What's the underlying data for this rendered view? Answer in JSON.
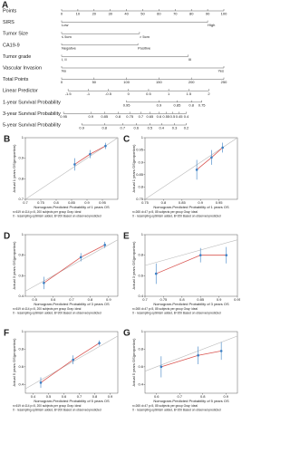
{
  "chart_data": [
    {
      "type": "nomogram",
      "panel": "A",
      "xlim": [
        0,
        100
      ],
      "x2lim": [
        0,
        250
      ],
      "rows": [
        {
          "label": "Points",
          "axis": "x",
          "ticks": [
            0,
            10,
            20,
            30,
            40,
            50,
            60,
            70,
            80,
            90,
            100
          ]
        },
        {
          "label": "SIRS",
          "axis": "x",
          "ticks": [
            {
              "value": 0,
              "label": "Low"
            },
            {
              "value": 90,
              "label": "High"
            }
          ]
        },
        {
          "label": "Tumor Size",
          "axis": "x",
          "ticks": [
            {
              "value": 0,
              "label": "≤ 5cm"
            },
            {
              "value": 48,
              "label": "> 5cm"
            }
          ]
        },
        {
          "label": "CA19-9",
          "axis": "x",
          "ticks": [
            {
              "value": 0,
              "label": "Negative"
            },
            {
              "value": 47,
              "label": "Positive"
            }
          ]
        },
        {
          "label": "Tumor grade",
          "axis": "x",
          "ticks": [
            {
              "value": 0,
              "label": "I, II"
            },
            {
              "value": 78,
              "label": "III"
            }
          ]
        },
        {
          "label": "Vascular Invasion",
          "axis": "x",
          "ticks": [
            {
              "value": 0,
              "label": "No"
            },
            {
              "value": 100,
              "label": "Yes"
            }
          ]
        },
        {
          "label": "Total Points",
          "axis": "x2",
          "ticks": [
            0,
            50,
            100,
            150,
            200,
            250
          ]
        },
        {
          "label": "Linear Predictor",
          "axis": "x2",
          "ticks": [
            -1.5,
            -1,
            -0.5,
            0,
            0.5,
            1,
            1.5,
            2
          ],
          "at": [
            10,
            41,
            72,
            103,
            134,
            165,
            196,
            227
          ]
        },
        {
          "label": "1-year Survival Probability",
          "axis": "x2",
          "ticks": [
            0.95,
            0.9,
            0.85,
            0.8,
            0.75
          ],
          "at": [
            100,
            150,
            178,
            200,
            216
          ]
        },
        {
          "label": "3-year Survival Probability",
          "axis": "x2",
          "ticks": [
            0.95,
            0.9,
            0.85,
            0.8,
            0.75,
            0.7,
            0.65,
            0.6,
            0.55,
            0.5,
            0.45,
            0.4
          ],
          "at": [
            3,
            45,
            66,
            87,
            105,
            122,
            136,
            150,
            161,
            171,
            181,
            192
          ]
        },
        {
          "label": "5-year Survival Probability",
          "axis": "x2",
          "ticks": [
            0.9,
            0.8,
            0.7,
            0.6,
            0.5,
            0.4,
            0.3,
            0.2
          ],
          "at": [
            31,
            66,
            94,
            115,
            136,
            154,
            174,
            192
          ]
        }
      ]
    },
    {
      "type": "calibration",
      "panel": "B",
      "xlabel": "Nomogram-Predicted Probability of 1 years OS",
      "ylabel": "Actual 1 years OS(proportion)",
      "notes": [
        "n=619 d=114 p=5, 200 subjects per group  Gray: ideal",
        "X - resampling optimism added, B=200  Based on observed-predicted"
      ],
      "xlim": [
        0.7,
        1.0
      ],
      "xticks": [
        0.7,
        0.75,
        0.8,
        0.85,
        0.9,
        0.95
      ],
      "ylim": [
        0.7,
        1.0
      ],
      "yticks": [
        0.7,
        0.8,
        0.9,
        1.0
      ],
      "color": "#d9534f",
      "point_color": "#3a7fc4",
      "x": [
        0.86,
        0.91,
        0.96
      ],
      "values": [
        0.87,
        0.92,
        0.96
      ],
      "errors": [
        0.03,
        0.02,
        0.015
      ]
    },
    {
      "type": "calibration",
      "panel": "C",
      "xlabel": "Nomogram-Predicted Probability of 1 years OS",
      "ylabel": "Actual 1 years OS(proportion)",
      "notes": [
        "n=265 d=47 p=5, 85 subjects per group  Gray: ideal",
        "X - resampling optimism added, B=200  Based on observed-predicted"
      ],
      "xlim": [
        0.75,
        1.0
      ],
      "xticks": [
        0.75,
        0.8,
        0.85,
        0.9,
        0.95
      ],
      "ylim": [
        0.75,
        1.0
      ],
      "yticks": [
        0.75,
        0.8,
        0.85,
        0.9,
        0.95,
        1.0
      ],
      "color": "#d9534f",
      "point_color": "#3a7fc4",
      "x": [
        0.89,
        0.93,
        0.96
      ],
      "values": [
        0.87,
        0.92,
        0.96
      ],
      "errors": [
        0.04,
        0.03,
        0.02
      ]
    },
    {
      "type": "calibration",
      "panel": "D",
      "xlabel": "Nomogram-Predicted Probability of 3 years OS",
      "ylabel": "Actual 3 years OS(proportion)",
      "notes": [
        "n=619 d=114 p=5, 200 subjects per group  Gray: ideal",
        "X - resampling optimism added, B=200  Based on observed-predicted"
      ],
      "xlim": [
        0.45,
        0.95
      ],
      "xticks": [
        0.5,
        0.6,
        0.7,
        0.8,
        0.9
      ],
      "ylim": [
        0.4,
        1.0
      ],
      "yticks": [
        0.4,
        0.6,
        0.8,
        1.0
      ],
      "color": "#d9534f",
      "point_color": "#3a7fc4",
      "x": [
        0.55,
        0.75,
        0.88
      ],
      "values": [
        0.53,
        0.78,
        0.9
      ],
      "errors": [
        0.06,
        0.04,
        0.03
      ]
    },
    {
      "type": "calibration",
      "panel": "E",
      "xlabel": "Nomogram-Predicted Probability of 3 years OS",
      "ylabel": "Actual 3 years OS(proportion)",
      "notes": [
        "n=265 d=47 p=5, 85 subjects per group  Gray: ideal",
        "X - resampling optimism added, B=200  Based on observed-predicted"
      ],
      "xlim": [
        0.7,
        0.95
      ],
      "xticks": [
        0.7,
        0.75,
        0.8,
        0.85,
        0.9,
        0.95
      ],
      "ylim": [
        0.4,
        1.0
      ],
      "yticks": [
        0.4,
        0.6,
        0.8,
        1.0
      ],
      "color": "#d9534f",
      "point_color": "#3a7fc4",
      "x": [
        0.73,
        0.85,
        0.92
      ],
      "values": [
        0.62,
        0.8,
        0.8
      ],
      "errors": [
        0.1,
        0.07,
        0.08
      ]
    },
    {
      "type": "calibration",
      "panel": "F",
      "xlabel": "Nomogram-Predicted Probability of 5 years OS",
      "ylabel": "Actual 5 years OS(proportion)",
      "notes": [
        "n=619 d=114 p=5, 200 subjects per group  Gray: ideal",
        "X - resampling optimism added, B=200  Based on observed-predicted"
      ],
      "xlim": [
        0.35,
        0.95
      ],
      "xticks": [
        0.4,
        0.5,
        0.6,
        0.7,
        0.8,
        0.9
      ],
      "ylim": [
        0.3,
        1.0
      ],
      "yticks": [
        0.4,
        0.6,
        0.8,
        1.0
      ],
      "color": "#d9534f",
      "point_color": "#3a7fc4",
      "x": [
        0.45,
        0.66,
        0.83
      ],
      "values": [
        0.42,
        0.68,
        0.87
      ],
      "errors": [
        0.06,
        0.05,
        0.03
      ]
    },
    {
      "type": "calibration",
      "panel": "G",
      "xlabel": "Nomogram-Predicted Probability of 5 years OS",
      "ylabel": "Actual 5 years OS(proportion)",
      "notes": [
        "n=265 d=47 p=5, 85 subjects per group  Gray: ideal",
        "X - resampling optimism added, B=200  Based on observed-predicted"
      ],
      "xlim": [
        0.55,
        0.95
      ],
      "xticks": [
        0.6,
        0.7,
        0.8,
        0.9
      ],
      "ylim": [
        0.3,
        1.0
      ],
      "yticks": [
        0.4,
        0.6,
        0.8,
        1.0
      ],
      "color": "#d9534f",
      "point_color": "#3a7fc4",
      "x": [
        0.62,
        0.78,
        0.88
      ],
      "values": [
        0.6,
        0.73,
        0.78
      ],
      "errors": [
        0.12,
        0.1,
        0.1
      ]
    }
  ]
}
